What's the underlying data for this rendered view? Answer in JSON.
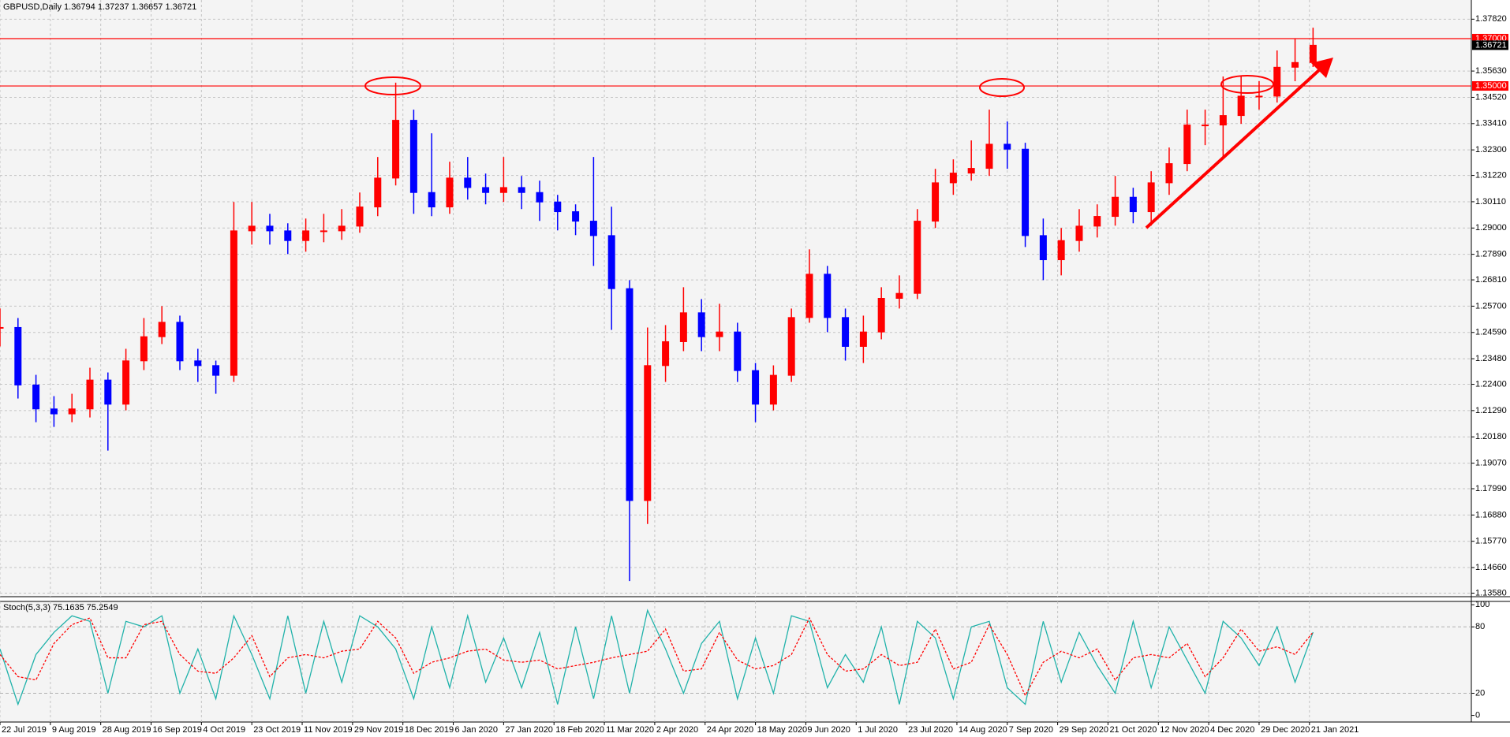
{
  "chart_data": [
    {
      "type": "candlestick",
      "title": "GBPUSD,Daily  1.36794 1.37237 1.36657 1.36721",
      "up_color": "#ff0000",
      "down_color": "#0000ff",
      "grid": true,
      "xlim": [
        0,
        409
      ],
      "xticks": [
        {
          "value": 0,
          "label": "22 Jul 2019"
        },
        {
          "value": 14,
          "label": "9 Aug 2019"
        },
        {
          "value": 28,
          "label": "28 Aug 2019"
        },
        {
          "value": 42,
          "label": "16 Sep 2019"
        },
        {
          "value": 56,
          "label": "4 Oct 2019"
        },
        {
          "value": 70,
          "label": "23 Oct 2019"
        },
        {
          "value": 84,
          "label": "11 Nov 2019"
        },
        {
          "value": 98,
          "label": "29 Nov 2019"
        },
        {
          "value": 112,
          "label": "18 Dec 2019"
        },
        {
          "value": 126,
          "label": "6 Jan 2020"
        },
        {
          "value": 140,
          "label": "27 Jan 2020"
        },
        {
          "value": 154,
          "label": "18 Feb 2020"
        },
        {
          "value": 168,
          "label": "11 Mar 2020"
        },
        {
          "value": 182,
          "label": "2 Apr 2020"
        },
        {
          "value": 196,
          "label": "24 Apr 2020"
        },
        {
          "value": 210,
          "label": "18 May 2020"
        },
        {
          "value": 224,
          "label": "9 Jun 2020"
        },
        {
          "value": 238,
          "label": "1 Jul 2020"
        },
        {
          "value": 252,
          "label": "23 Jul 2020"
        },
        {
          "value": 266,
          "label": "14 Aug 2020"
        },
        {
          "value": 280,
          "label": "7 Sep 2020"
        },
        {
          "value": 294,
          "label": "29 Sep 2020"
        },
        {
          "value": 308,
          "label": "21 Oct 2020"
        },
        {
          "value": 322,
          "label": "12 Nov 2020"
        },
        {
          "value": 336,
          "label": "4 Dec 2020"
        },
        {
          "value": 350,
          "label": "29 Dec 2020"
        },
        {
          "value": 364,
          "label": "21 Jan 2021"
        }
      ],
      "ylim": [
        1.1343,
        1.3863
      ],
      "yticks": [
        {
          "value": 1.3782,
          "label": "1.37820"
        },
        {
          "value": 1.3563,
          "label": "1.35630"
        },
        {
          "value": 1.3452,
          "label": "1.34520"
        },
        {
          "value": 1.3341,
          "label": "1.33410"
        },
        {
          "value": 1.323,
          "label": "1.32300"
        },
        {
          "value": 1.3122,
          "label": "1.31220"
        },
        {
          "value": 1.3011,
          "label": "1.30110"
        },
        {
          "value": 1.29,
          "label": "1.29000"
        },
        {
          "value": 1.2789,
          "label": "1.27890"
        },
        {
          "value": 1.2681,
          "label": "1.26810"
        },
        {
          "value": 1.257,
          "label": "1.25700"
        },
        {
          "value": 1.2459,
          "label": "1.24590"
        },
        {
          "value": 1.2348,
          "label": "1.23480"
        },
        {
          "value": 1.224,
          "label": "1.22400"
        },
        {
          "value": 1.2129,
          "label": "1.21290"
        },
        {
          "value": 1.2018,
          "label": "1.20180"
        },
        {
          "value": 1.1907,
          "label": "1.19070"
        },
        {
          "value": 1.1799,
          "label": "1.17990"
        },
        {
          "value": 1.1688,
          "label": "1.16880"
        },
        {
          "value": 1.1577,
          "label": "1.15770"
        },
        {
          "value": 1.1466,
          "label": "1.14660"
        },
        {
          "value": 1.1358,
          "label": "1.13580"
        }
      ],
      "hlines": [
        {
          "value": 1.37,
          "label": "1.37000",
          "color": "#ff0000"
        },
        {
          "value": 1.35,
          "label": "1.35000",
          "color": "#ff0000"
        }
      ],
      "last_price": {
        "value": 1.36721,
        "label": "1.36721",
        "color": "#000000"
      },
      "x": [
        0,
        5,
        10,
        15,
        20,
        25,
        30,
        35,
        40,
        45,
        50,
        55,
        60,
        65,
        70,
        75,
        80,
        85,
        90,
        95,
        100,
        105,
        110,
        115,
        120,
        125,
        130,
        135,
        140,
        145,
        150,
        155,
        160,
        165,
        170,
        175,
        180,
        185,
        190,
        195,
        200,
        205,
        210,
        215,
        220,
        225,
        230,
        235,
        240,
        245,
        250,
        255,
        260,
        265,
        270,
        275,
        280,
        285,
        290,
        295,
        300,
        305,
        310,
        315,
        320,
        325,
        330,
        335,
        340,
        345,
        350,
        355,
        360,
        365
      ],
      "close": [
        1.248,
        1.2237,
        1.2136,
        1.2115,
        1.2136,
        1.2258,
        1.2156,
        1.2339,
        1.2441,
        1.2502,
        1.2339,
        1.2319,
        1.2278,
        1.2888,
        1.2908,
        1.2888,
        1.2847,
        1.2888,
        1.2888,
        1.2908,
        1.2989,
        1.3111,
        1.3355,
        1.305,
        1.2989,
        1.3111,
        1.3071,
        1.305,
        1.3071,
        1.305,
        1.301,
        1.2969,
        1.2929,
        1.2868,
        1.2644,
        1.1749,
        1.2319,
        1.242,
        1.2542,
        1.2441,
        1.2461,
        1.2298,
        1.2156,
        1.2278,
        1.2522,
        1.2705,
        1.2522,
        1.24,
        1.2461,
        1.2603,
        1.2624,
        1.2929,
        1.3091,
        1.3132,
        1.3152,
        1.3254,
        1.3233,
        1.2868,
        1.2766,
        1.2847,
        1.2908,
        1.2949,
        1.303,
        1.2969,
        1.3091,
        1.3172,
        1.3335,
        1.3335,
        1.3375,
        1.3457,
        1.3457,
        1.3579,
        1.3599,
        1.3672
      ],
      "high": [
        1.256,
        1.252,
        1.228,
        1.219,
        1.22,
        1.231,
        1.229,
        1.239,
        1.252,
        1.257,
        1.253,
        1.239,
        1.234,
        1.301,
        1.301,
        1.296,
        1.292,
        1.294,
        1.296,
        1.298,
        1.305,
        1.32,
        1.3514,
        1.34,
        1.33,
        1.318,
        1.32,
        1.313,
        1.32,
        1.312,
        1.31,
        1.304,
        1.3,
        1.32,
        1.299,
        1.268,
        1.248,
        1.249,
        1.265,
        1.26,
        1.258,
        1.25,
        1.233,
        1.232,
        1.256,
        1.281,
        1.274,
        1.256,
        1.253,
        1.265,
        1.27,
        1.298,
        1.315,
        1.319,
        1.327,
        1.34,
        1.335,
        1.326,
        1.294,
        1.29,
        1.298,
        1.3,
        1.312,
        1.307,
        1.314,
        1.324,
        1.34,
        1.34,
        1.354,
        1.354,
        1.352,
        1.365,
        1.37,
        1.3746
      ],
      "low": [
        1.24,
        1.218,
        1.208,
        1.206,
        1.208,
        1.21,
        1.196,
        1.213,
        1.23,
        1.241,
        1.23,
        1.225,
        1.22,
        1.225,
        1.283,
        1.283,
        1.279,
        1.28,
        1.284,
        1.285,
        1.288,
        1.295,
        1.308,
        1.296,
        1.295,
        1.296,
        1.302,
        1.3,
        1.301,
        1.298,
        1.293,
        1.289,
        1.287,
        1.274,
        1.247,
        1.1409,
        1.165,
        1.225,
        1.238,
        1.238,
        1.238,
        1.225,
        1.208,
        1.213,
        1.225,
        1.25,
        1.246,
        1.234,
        1.233,
        1.243,
        1.256,
        1.26,
        1.29,
        1.304,
        1.31,
        1.312,
        1.315,
        1.282,
        1.268,
        1.27,
        1.28,
        1.286,
        1.291,
        1.292,
        1.291,
        1.304,
        1.314,
        1.325,
        1.32,
        1.334,
        1.34,
        1.343,
        1.352,
        1.358
      ]
    },
    {
      "type": "line",
      "title": "Stoch(5,3,3) 75.1635 75.2549",
      "ylim": [
        -6,
        103
      ],
      "yticks": [
        0,
        20,
        80,
        100
      ],
      "levels": [
        20,
        80
      ],
      "level_color": "#b0b0b0",
      "series": [
        {
          "color": "#20b2aa",
          "dashed": false,
          "values": [
            60,
            10,
            55,
            75,
            90,
            85,
            20,
            85,
            80,
            90,
            20,
            60,
            15,
            90,
            55,
            15,
            90,
            20,
            85,
            30,
            90,
            80,
            60,
            15,
            80,
            25,
            90,
            30,
            70,
            25,
            75,
            10,
            80,
            15,
            90,
            20,
            95,
            60,
            20,
            65,
            85,
            15,
            70,
            20,
            90,
            85,
            25,
            55,
            30,
            80,
            10,
            85,
            70,
            15,
            80,
            85,
            25,
            10,
            85,
            30,
            75,
            45,
            20,
            85,
            25,
            80,
            50,
            20,
            85,
            70,
            45,
            80,
            30,
            75.1635
          ]
        },
        {
          "color": "#ff0000",
          "dashed": true,
          "values": [
            55,
            35,
            32,
            65,
            82,
            88,
            52,
            52,
            82,
            85,
            55,
            40,
            38,
            52,
            72,
            35,
            52,
            55,
            52,
            58,
            60,
            85,
            70,
            38,
            48,
            52,
            58,
            60,
            50,
            48,
            50,
            42,
            45,
            48,
            52,
            55,
            58,
            78,
            40,
            42,
            75,
            50,
            42,
            45,
            55,
            88,
            55,
            40,
            42,
            55,
            45,
            48,
            78,
            42,
            48,
            82,
            55,
            18,
            48,
            58,
            52,
            60,
            32,
            52,
            55,
            52,
            65,
            35,
            52,
            78,
            58,
            62,
            55,
            75.2549
          ]
        }
      ]
    }
  ]
}
